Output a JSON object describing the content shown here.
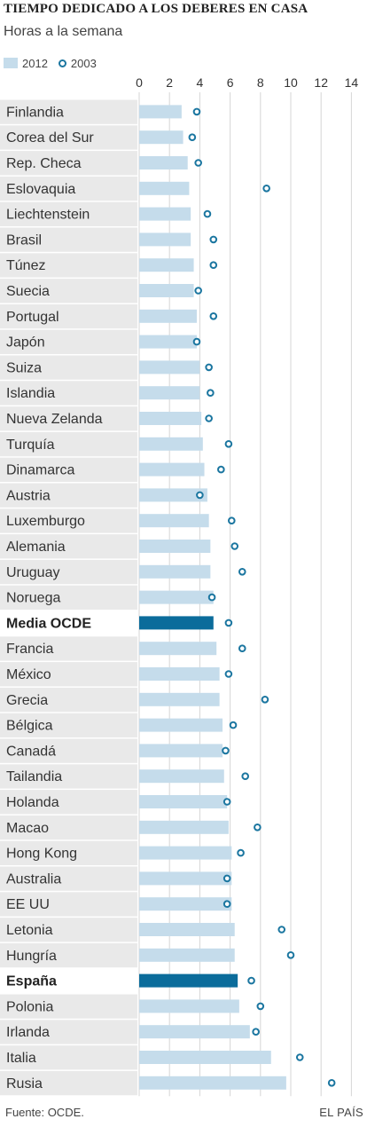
{
  "header": {
    "title": "TIEMPO DEDICADO A LOS DEBERES EN CASA",
    "subtitle": "Horas a la semana"
  },
  "legend": {
    "series_2012": "2012",
    "series_2003": "2003"
  },
  "footer": {
    "source": "Fuente: OCDE.",
    "brand": "EL PAÍS"
  },
  "colors": {
    "bar_2012": "#c5dceb",
    "bar_highlight": "#0b6c9b",
    "marker_2003": "#1b76a0",
    "label_bg": "#e9e9e9",
    "label_bg_highlight": "#ffffff",
    "gridline": "#d6d6d6"
  },
  "chart_data": {
    "type": "bar",
    "orientation": "horizontal",
    "title": "TIEMPO DEDICADO A LOS DEBERES EN CASA",
    "subtitle": "Horas a la semana",
    "xlim": [
      0,
      14
    ],
    "xticks": [
      0,
      2,
      4,
      6,
      8,
      10,
      12,
      14
    ],
    "grid": true,
    "legend_position": "top-left",
    "categories": [
      "Finlandia",
      "Corea del Sur",
      "Rep. Checa",
      "Eslovaquia",
      "Liechtenstein",
      "Brasil",
      "Túnez",
      "Suecia",
      "Portugal",
      "Japón",
      "Suiza",
      "Islandia",
      "Nueva Zelanda",
      "Turquía",
      "Dinamarca",
      "Austria",
      "Luxemburgo",
      "Alemania",
      "Uruguay",
      "Noruega",
      "Media OCDE",
      "Francia",
      "México",
      "Grecia",
      "Bélgica",
      "Canadá",
      "Tailandia",
      "Holanda",
      "Macao",
      "Hong Kong",
      "Australia",
      "EE UU",
      "Letonia",
      "Hungría",
      "España",
      "Polonia",
      "Irlanda",
      "Italia",
      "Rusia"
    ],
    "highlight": [
      "Media OCDE",
      "España"
    ],
    "series": [
      {
        "name": "2012",
        "kind": "bar",
        "values": [
          2.8,
          2.9,
          3.2,
          3.3,
          3.4,
          3.4,
          3.6,
          3.6,
          3.8,
          3.8,
          4.0,
          4.0,
          4.1,
          4.2,
          4.3,
          4.5,
          4.6,
          4.7,
          4.7,
          4.9,
          4.9,
          5.1,
          5.3,
          5.3,
          5.5,
          5.5,
          5.6,
          5.8,
          5.9,
          6.1,
          6.1,
          6.1,
          6.3,
          6.3,
          6.5,
          6.6,
          7.3,
          8.7,
          9.7
        ]
      },
      {
        "name": "2003",
        "kind": "marker",
        "values": [
          3.8,
          3.5,
          3.9,
          8.4,
          4.5,
          4.9,
          4.9,
          3.9,
          4.9,
          3.8,
          4.6,
          4.7,
          4.6,
          5.9,
          5.4,
          4.0,
          6.1,
          6.3,
          6.8,
          4.8,
          5.9,
          6.8,
          5.9,
          8.3,
          6.2,
          5.7,
          7.0,
          5.8,
          7.8,
          6.7,
          5.8,
          5.8,
          9.4,
          10.0,
          7.4,
          8.0,
          7.7,
          10.6,
          12.7
        ]
      }
    ]
  }
}
